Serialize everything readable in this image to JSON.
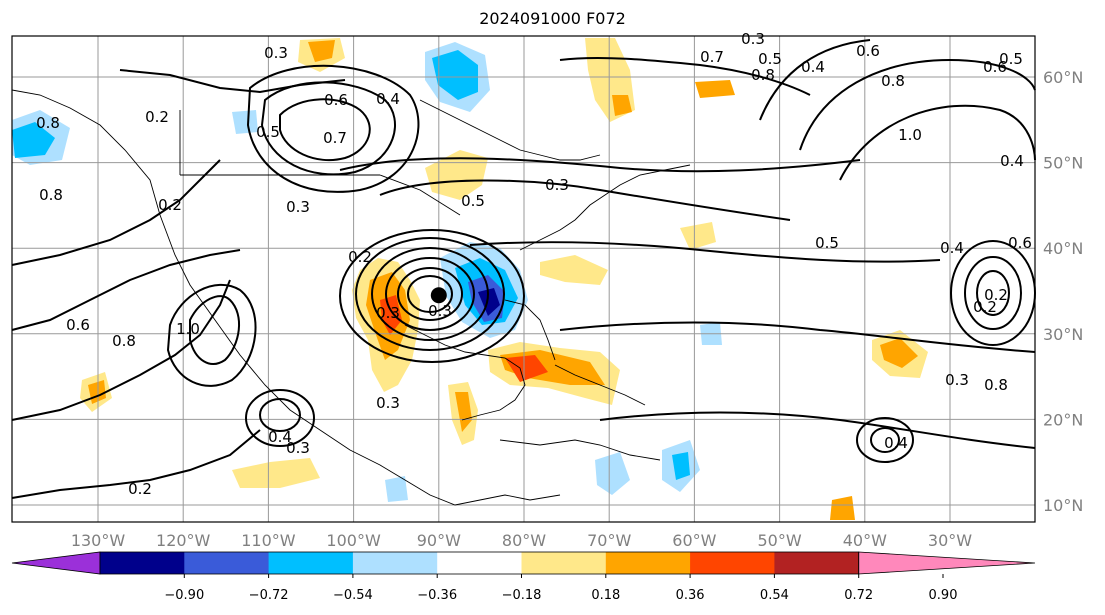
{
  "title": "2024091000 F072",
  "map": {
    "lat_labels": [
      "60°N",
      "50°N",
      "40°N",
      "30°N",
      "20°N",
      "10°N"
    ],
    "lon_labels": [
      "130°W",
      "120°W",
      "110°W",
      "100°W",
      "90°W",
      "80°W",
      "70°W",
      "60°W",
      "50°W",
      "40°W",
      "30°W"
    ],
    "contour_labels": [
      "0.3",
      "0.3",
      "0.5",
      "0.7",
      "0.8",
      "0.6",
      "0.4",
      "0.5",
      "0.6",
      "0.2",
      "0.4",
      "0.5",
      "0.7",
      "0.6",
      "0.3",
      "0.8",
      "1.0",
      "0.4",
      "0.5",
      "0.6",
      "0.3",
      "0.3",
      "0.3",
      "0.2",
      "0.5",
      "0.2",
      "0.4",
      "0.8",
      "0.6",
      "1.0",
      "0.8",
      "0.4",
      "0.3",
      "0.2",
      "0.3",
      "0.2",
      "0.3",
      "0.8",
      "0.4",
      "0.2",
      "0.8"
    ],
    "center_marker": {
      "lon": -90,
      "lat": 34.5
    }
  },
  "colorbar": {
    "ticks": [
      "−0.90",
      "−0.72",
      "−0.54",
      "−0.36",
      "−0.18",
      "0.18",
      "0.36",
      "0.54",
      "0.72",
      "0.90"
    ],
    "colors": [
      "#9b30d9",
      "#00008b",
      "#3a5bd9",
      "#00bfff",
      "#aee0ff",
      "#ffffff",
      "#ffe88a",
      "#ffa500",
      "#ff4500",
      "#b22222",
      "#ff88bb"
    ]
  }
}
